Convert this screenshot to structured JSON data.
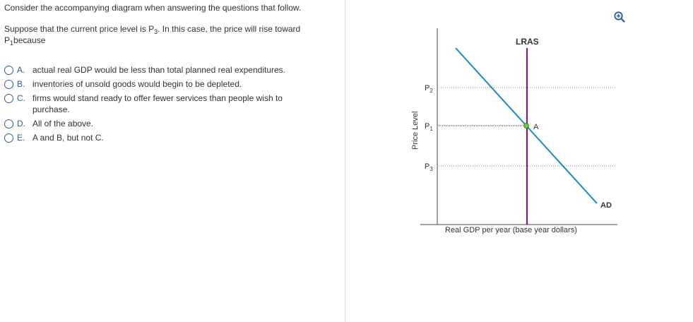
{
  "question": {
    "intro": "Consider the accompanying diagram when answering the questions that follow.",
    "prompt_part1": "Suppose that the current price level is P",
    "prompt_sub1": "3",
    "prompt_part2": ". In this case, the price will rise toward P",
    "prompt_sub2": "1",
    "prompt_part3": "because"
  },
  "options": [
    {
      "letter": "A.",
      "text": "actual real GDP would be less than total planned real expenditures."
    },
    {
      "letter": "B.",
      "text": "inventories of unsold goods would begin to be depleted."
    },
    {
      "letter": "C.",
      "text": "firms would stand ready to offer fewer services than people wish to purchase."
    },
    {
      "letter": "D.",
      "text": "All of the above."
    },
    {
      "letter": "E.",
      "text": "A and B, but not C."
    }
  ],
  "diagram": {
    "lras_label": "LRAS",
    "ad_label": "AD",
    "point_label": "A",
    "y_axis_label": "Price Level",
    "x_axis_label": "Real GDP per year (base year dollars)",
    "price_levels": [
      {
        "name": "P",
        "sub": "2"
      },
      {
        "name": "P",
        "sub": "1"
      },
      {
        "name": "P",
        "sub": "3"
      }
    ],
    "colors": {
      "ad": "#1a87c9",
      "lras": "#7a1f6e",
      "point": "#66cc33",
      "accent": "#2d5d9f"
    },
    "zoom_icon": "zoom-in-icon"
  }
}
